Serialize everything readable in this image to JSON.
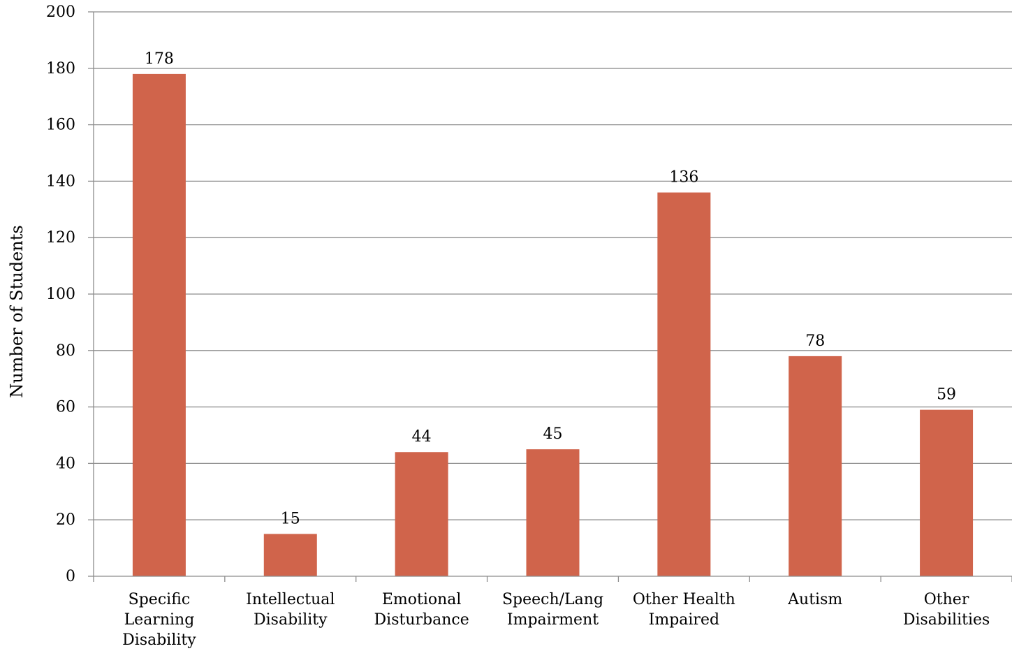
{
  "chart_data": {
    "type": "bar",
    "categories": [
      [
        "Specific",
        "Learning",
        "Disability"
      ],
      [
        "Intellectual",
        "Disability"
      ],
      [
        "Emotional",
        "Disturbance"
      ],
      [
        "Speech/Lang",
        "Impairment"
      ],
      [
        "Other Health",
        "Impaired"
      ],
      [
        "Autism"
      ],
      [
        "Other",
        "Disabilities"
      ]
    ],
    "values": [
      178,
      15,
      44,
      45,
      136,
      78,
      59
    ],
    "title": "",
    "xlabel": "",
    "ylabel": "Number of Students",
    "ylim": [
      0,
      200
    ],
    "yticks": [
      0,
      20,
      40,
      60,
      80,
      100,
      120,
      140,
      160,
      180,
      200
    ],
    "grid": true,
    "bar_color": "#d0644b",
    "grid_color": "#8c8c8c"
  }
}
